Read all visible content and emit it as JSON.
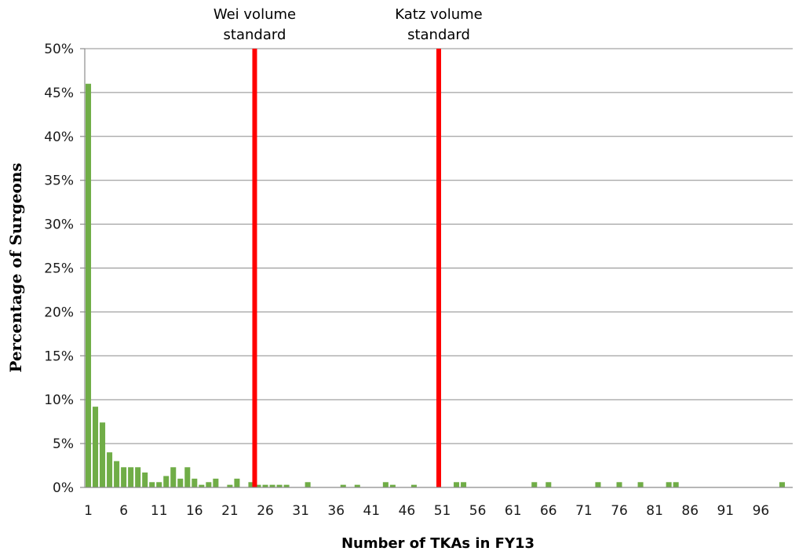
{
  "chart_data": {
    "type": "bar",
    "xlabel": "Number of TKAs in FY13",
    "ylabel": "Percentage of Surgeons",
    "x": [
      1,
      2,
      3,
      4,
      5,
      6,
      7,
      8,
      9,
      10,
      11,
      12,
      13,
      14,
      15,
      16,
      17,
      18,
      19,
      21,
      22,
      24,
      25,
      26,
      27,
      28,
      29,
      32,
      37,
      39,
      43,
      44,
      47,
      53,
      54,
      64,
      66,
      73,
      76,
      79,
      83,
      84,
      99
    ],
    "values": [
      46.0,
      9.2,
      7.4,
      4.0,
      3.0,
      2.3,
      2.3,
      2.3,
      1.7,
      0.6,
      0.6,
      1.3,
      2.3,
      1.0,
      2.3,
      1.0,
      0.3,
      0.6,
      1.0,
      0.3,
      1.0,
      0.6,
      0.3,
      0.3,
      0.3,
      0.3,
      0.3,
      0.6,
      0.3,
      0.3,
      0.6,
      0.3,
      0.3,
      0.6,
      0.6,
      0.6,
      0.6,
      0.6,
      0.6,
      0.6,
      0.6,
      0.6,
      0.6
    ],
    "x_tick_labels": [
      "1",
      "6",
      "11",
      "16",
      "21",
      "26",
      "31",
      "36",
      "41",
      "46",
      "51",
      "56",
      "61",
      "66",
      "71",
      "76",
      "81",
      "86",
      "91",
      "96"
    ],
    "y_tick_labels": [
      "0%",
      "5%",
      "10%",
      "15%",
      "20%",
      "25%",
      "30%",
      "35%",
      "40%",
      "45%",
      "50%"
    ],
    "ylim": [
      0,
      50
    ],
    "xlim": [
      1,
      100
    ],
    "grid": true,
    "bar_color": "#70ad47",
    "reference_lines": [
      {
        "x": 24.5,
        "label_line1": "Wei volume",
        "label_line2": "standard",
        "color": "#ff0000"
      },
      {
        "x": 50.5,
        "label_line1": "Katz volume",
        "label_line2": "standard",
        "color": "#ff0000"
      }
    ]
  }
}
